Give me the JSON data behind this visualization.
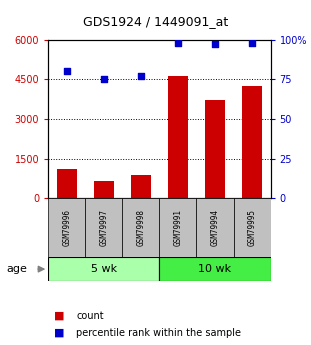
{
  "title": "GDS1924 / 1449091_at",
  "samples": [
    "GSM79996",
    "GSM79997",
    "GSM79998",
    "GSM79991",
    "GSM79994",
    "GSM79995"
  ],
  "counts": [
    1100,
    650,
    870,
    4620,
    3730,
    4230
  ],
  "percentiles": [
    80,
    75,
    77,
    98,
    97,
    98
  ],
  "groups": [
    {
      "label": "5 wk",
      "indices": [
        0,
        1,
        2
      ],
      "color": "#aaffaa"
    },
    {
      "label": "10 wk",
      "indices": [
        3,
        4,
        5
      ],
      "color": "#44ee44"
    }
  ],
  "bar_color": "#CC0000",
  "dot_color": "#0000CC",
  "left_ylim": [
    0,
    6000
  ],
  "right_ylim": [
    0,
    100
  ],
  "left_yticks": [
    0,
    1500,
    3000,
    4500,
    6000
  ],
  "right_yticks": [
    0,
    25,
    50,
    75,
    100
  ],
  "right_yticklabels": [
    "0",
    "25",
    "50",
    "75",
    "100%"
  ],
  "left_tick_color": "#CC0000",
  "right_tick_color": "#0000CC",
  "age_label": "age",
  "legend_count_label": "count",
  "legend_percentile_label": "percentile rank within the sample",
  "xlabel_area_color": "#C0C0C0",
  "background_color": "#ffffff"
}
